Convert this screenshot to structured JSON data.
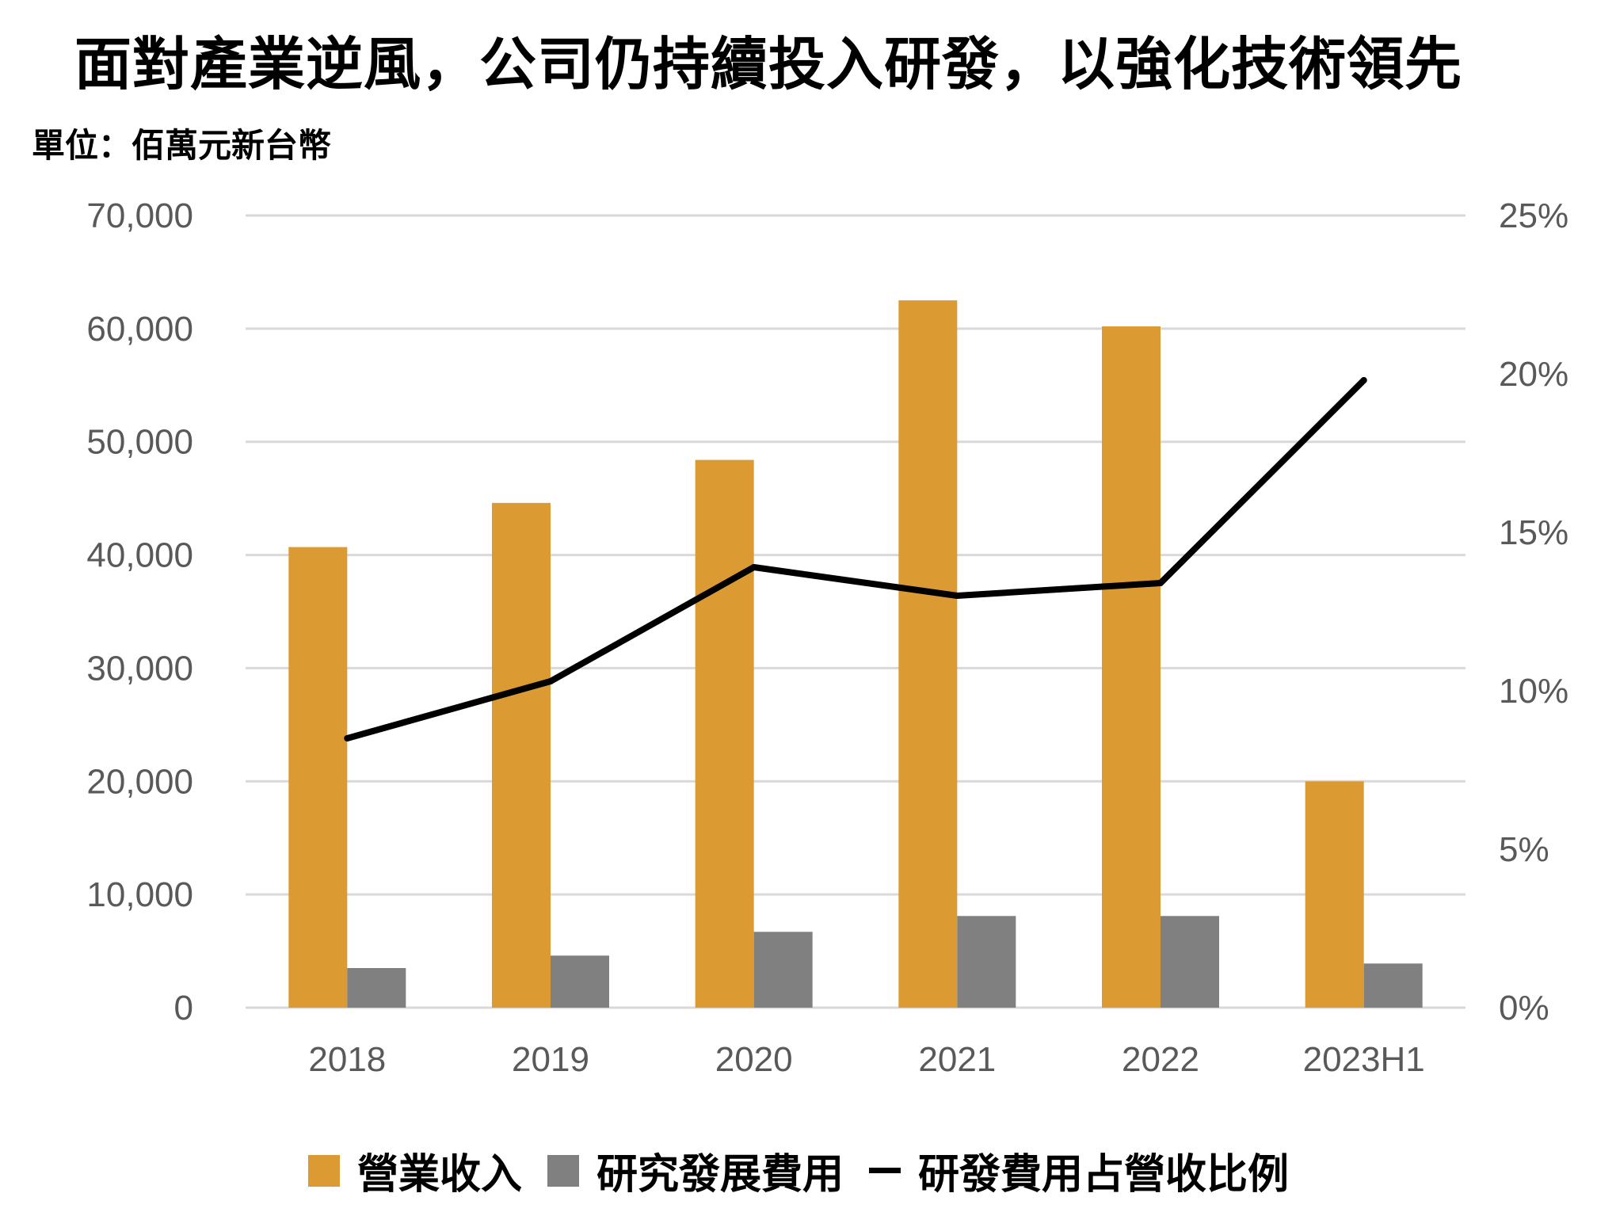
{
  "title": "面對產業逆風，公司仍持續投入研發，以強化技術領先",
  "unit_label": "單位：佰萬元新台幣",
  "chart_data": {
    "type": "bar",
    "categories": [
      "2018",
      "2019",
      "2020",
      "2021",
      "2022",
      "2023H1"
    ],
    "series": [
      {
        "name": "營業收入",
        "type": "bar",
        "axis": "left",
        "color": "#DC9A33",
        "values": [
          40700,
          44600,
          48400,
          62500,
          60200,
          20000
        ]
      },
      {
        "name": "研究發展費用",
        "type": "bar",
        "axis": "left",
        "color": "#808080",
        "values": [
          3500,
          4600,
          6700,
          8100,
          8100,
          3900
        ]
      },
      {
        "name": "研發費用占營收比例",
        "type": "line",
        "axis": "right",
        "color": "#000000",
        "values": [
          8.5,
          10.3,
          13.9,
          13.0,
          13.4,
          19.8
        ]
      }
    ],
    "y_left": {
      "min": 0,
      "max": 70000,
      "ticks": [
        "0",
        "10,000",
        "20,000",
        "30,000",
        "40,000",
        "50,000",
        "60,000",
        "70,000"
      ]
    },
    "y_right": {
      "min": 0,
      "max": 25,
      "ticks": [
        "0%",
        "5%",
        "10%",
        "15%",
        "20%",
        "25%"
      ]
    },
    "grid": true,
    "legend_position": "bottom"
  }
}
